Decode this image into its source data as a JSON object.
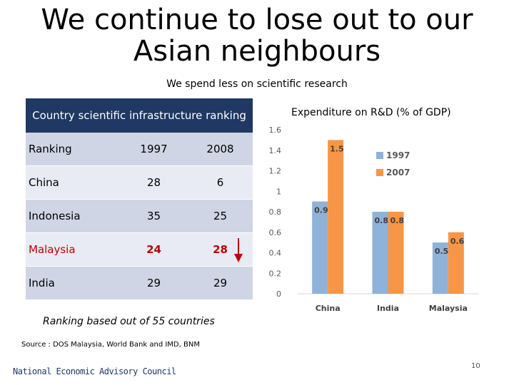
{
  "slide": {
    "title_line1": "We continue to lose out to our",
    "title_line2": "Asian neighbours",
    "subtitle": "We spend less on scientific research",
    "note": "Ranking based out of 55 countries",
    "source": "Source : DOS Malaysia, World Bank and IMD, BNM",
    "footer_org": "National Economic Advisory Council",
    "page_number": "10"
  },
  "ranking_table": {
    "title": "Country scientific infrastructure ranking",
    "headers": [
      "Ranking",
      "1997",
      "2008"
    ],
    "rows": [
      [
        "China",
        "28",
        "6"
      ],
      [
        "Indonesia",
        "35",
        "25"
      ],
      [
        "Malaysia",
        "24",
        "28"
      ],
      [
        "India",
        "29",
        "29"
      ]
    ],
    "highlight_row": "Malaysia",
    "highlight_color": "#c00000",
    "arrow": "down-arrow-icon"
  },
  "chart_data": {
    "type": "bar",
    "title": "Expenditure on R&D (% of GDP)",
    "categories": [
      "China",
      "India",
      "Malaysia"
    ],
    "series": [
      {
        "name": "1997",
        "values": [
          0.9,
          0.8,
          0.5
        ],
        "color": "#8fb2d9"
      },
      {
        "name": "2007",
        "values": [
          1.5,
          0.8,
          0.6
        ],
        "color": "#f79646"
      }
    ],
    "ylim": [
      0,
      1.6
    ],
    "yticks": [
      "0",
      "0.2",
      "0.4",
      "0.6",
      "0.8",
      "1",
      "1.2",
      "1.4",
      "1.6"
    ],
    "legend": "top-right",
    "grid": false
  }
}
